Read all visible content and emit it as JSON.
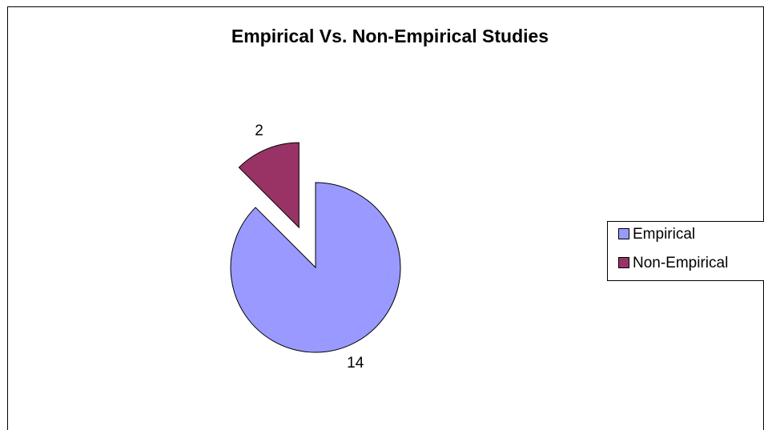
{
  "chart_data": {
    "type": "pie",
    "title": "Empirical Vs. Non-Empirical Studies",
    "categories": [
      "Empirical",
      "Non-Empirical"
    ],
    "values": [
      14,
      2
    ],
    "colors": [
      "#9999ff",
      "#993366"
    ],
    "explode": [
      false,
      true
    ],
    "legend": "right"
  }
}
